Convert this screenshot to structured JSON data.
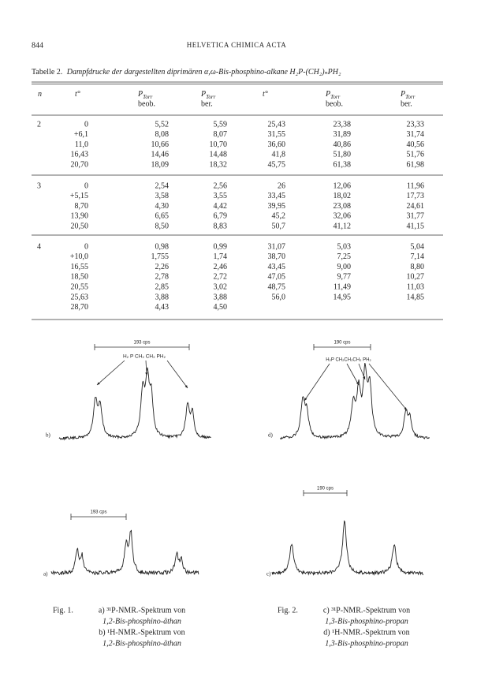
{
  "header": {
    "page_number": "844",
    "journal": "HELVETICA CHIMICA ACTA"
  },
  "table": {
    "caption_label": "Tabelle 2.",
    "caption": "Dampfdrucke der dargestellten diprimären α,ω-Bis-phosphino-alkane H₂P-(CH₂)ₙPH₂",
    "columns": [
      {
        "symbol": "n"
      },
      {
        "symbol": "t°"
      },
      {
        "symbol": "P",
        "sub": "Torr",
        "note": "beob."
      },
      {
        "symbol": "P",
        "sub": "Torr",
        "note": "ber."
      },
      {
        "symbol": "t°"
      },
      {
        "symbol": "P",
        "sub": "Torr",
        "note": "beob."
      },
      {
        "symbol": "P",
        "sub": "Torr",
        "note": "ber."
      }
    ],
    "groups": [
      {
        "n": "2",
        "rows": [
          [
            "0",
            "5,52",
            "5,59",
            "25,43",
            "23,38",
            "23,33"
          ],
          [
            "+6,1",
            "8,08",
            "8,07",
            "31,55",
            "31,89",
            "31,74"
          ],
          [
            "11,0",
            "10,66",
            "10,70",
            "36,60",
            "40,86",
            "40,56"
          ],
          [
            "16,43",
            "14,46",
            "14,48",
            "41,8",
            "51,80",
            "51,76"
          ],
          [
            "20,70",
            "18,09",
            "18,32",
            "45,75",
            "61,38",
            "61,98"
          ]
        ]
      },
      {
        "n": "3",
        "rows": [
          [
            "0",
            "2,54",
            "2,56",
            "26",
            "12,06",
            "11,96"
          ],
          [
            "+5,15",
            "3,58",
            "3,55",
            "33,45",
            "18,02",
            "17,73"
          ],
          [
            "8,70",
            "4,30",
            "4,42",
            "39,95",
            "23,08",
            "24,61"
          ],
          [
            "13,90",
            "6,65",
            "6,79",
            "45,2",
            "32,06",
            "31,77"
          ],
          [
            "20,50",
            "8,50",
            "8,83",
            "50,7",
            "41,12",
            "41,15"
          ]
        ]
      },
      {
        "n": "4",
        "rows": [
          [
            "0",
            "0,98",
            "0,99",
            "31,07",
            "5,03",
            "5,04"
          ],
          [
            "+10,0",
            "1,755",
            "1,74",
            "38,70",
            "7,25",
            "7,14"
          ],
          [
            "16,55",
            "2,26",
            "2,46",
            "43,45",
            "9,00",
            "8,80"
          ],
          [
            "18,50",
            "2,78",
            "2,72",
            "47,05",
            "9,77",
            "10,27"
          ],
          [
            "20,55",
            "2,85",
            "3,02",
            "48,75",
            "11,49",
            "11,03"
          ],
          [
            "25,63",
            "3,88",
            "3,88",
            "56,0",
            "14,95",
            "14,85"
          ],
          [
            "28,70",
            "4,43",
            "4,50"
          ]
        ]
      }
    ]
  },
  "figures": {
    "spectra": [
      {
        "label": "b)",
        "scale": "193 cps",
        "assignment": "H₂ P CH₂ CH₂ PH₂"
      },
      {
        "label": "d)",
        "scale": "190 cps",
        "assignment": "H₂P CH₂CH₂CH₂ PH₂"
      },
      {
        "label": "a)",
        "scale": "193 cps"
      },
      {
        "label": "c)",
        "scale": "190 cps"
      }
    ],
    "captions": [
      {
        "figure": "Fig. 1.",
        "lines": [
          "a) ³¹P-NMR.-Spektrum von",
          "1,2-Bis-phosphino-äthan",
          "b) ¹H-NMR.-Spektrum von",
          "1,2-Bis-phosphino-äthan"
        ]
      },
      {
        "figure": "Fig. 2.",
        "lines": [
          "c) ³¹P-NMR.-Spektrum von",
          "1,3-Bis-phosphino-propan",
          "d) ¹H-NMR.-Spektrum von",
          "1,3-Bis-phosphino-propan"
        ]
      }
    ]
  }
}
